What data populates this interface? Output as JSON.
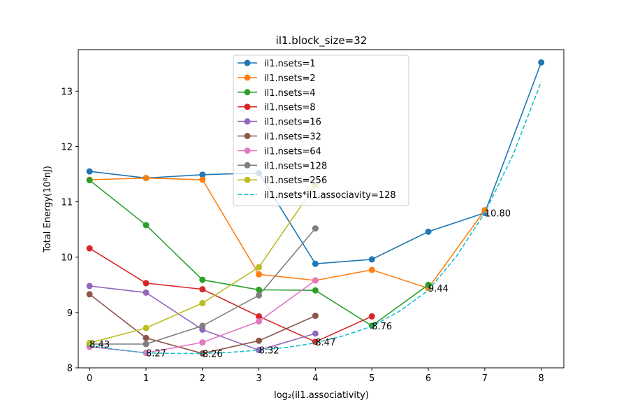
{
  "chart_data": {
    "type": "line",
    "title": "il1.block_size=32",
    "xlabel": "log₂(il1.associativity)",
    "ylabel": "Total Energy(10⁸nJ)",
    "xlim": [
      -0.2,
      8.4
    ],
    "ylim": [
      8.0,
      13.75
    ],
    "xticks": [
      "0",
      "1",
      "2",
      "3",
      "4",
      "5",
      "6",
      "7",
      "8"
    ],
    "yticks": [
      "8",
      "9",
      "10",
      "11",
      "12",
      "13"
    ],
    "legend_position": "upper center",
    "grid": false,
    "series": [
      {
        "name": "il1.nsets=1",
        "color": "#1f77b4",
        "x": [
          0,
          1,
          2,
          3,
          4,
          5,
          6,
          7,
          8
        ],
        "y": [
          11.55,
          11.43,
          11.49,
          11.52,
          9.88,
          9.96,
          10.46,
          10.8,
          13.52
        ]
      },
      {
        "name": "il1.nsets=2",
        "color": "#ff7f0e",
        "x": [
          0,
          1,
          2,
          3,
          4,
          5,
          6,
          7
        ],
        "y": [
          11.4,
          11.43,
          11.4,
          9.69,
          9.58,
          9.77,
          9.44,
          10.85
        ]
      },
      {
        "name": "il1.nsets=4",
        "color": "#2ca02c",
        "x": [
          0,
          1,
          2,
          3,
          4,
          5,
          6
        ],
        "y": [
          11.39,
          10.58,
          9.59,
          9.41,
          9.4,
          8.76,
          9.5
        ]
      },
      {
        "name": "il1.nsets=8",
        "color": "#d62728",
        "x": [
          0,
          1,
          2,
          3,
          4,
          5
        ],
        "y": [
          10.16,
          9.53,
          9.42,
          8.93,
          8.47,
          8.93
        ]
      },
      {
        "name": "il1.nsets=16",
        "color": "#9467bd",
        "x": [
          0,
          1,
          2,
          3,
          4
        ],
        "y": [
          9.48,
          9.36,
          8.69,
          8.32,
          8.62
        ]
      },
      {
        "name": "il1.nsets=32",
        "color": "#8c564b",
        "x": [
          0,
          1,
          2,
          3,
          4
        ],
        "y": [
          9.33,
          8.54,
          8.26,
          8.49,
          8.94
        ]
      },
      {
        "name": "il1.nsets=64",
        "color": "#e377c2",
        "x": [
          0,
          1,
          2,
          3,
          4
        ],
        "y": [
          8.38,
          8.27,
          8.46,
          8.84,
          9.58
        ]
      },
      {
        "name": "il1.nsets=128",
        "color": "#7f7f7f",
        "x": [
          0,
          1,
          2,
          3,
          4
        ],
        "y": [
          8.43,
          8.43,
          8.76,
          9.31,
          10.52
        ]
      },
      {
        "name": "il1.nsets=256",
        "color": "#bcbd22",
        "x": [
          0,
          1,
          2,
          3,
          4
        ],
        "y": [
          8.45,
          8.72,
          9.17,
          9.82,
          11.3
        ]
      },
      {
        "name": "il1.nsets*il1.associavity=128",
        "color": "#17becf",
        "dashed": true,
        "x": [
          0,
          0.5,
          1,
          1.5,
          2,
          2.5,
          3,
          3.5,
          4,
          4.5,
          5,
          5.5,
          6,
          6.5,
          7,
          7.5,
          8
        ],
        "y": [
          8.4,
          8.33,
          8.27,
          8.26,
          8.26,
          8.28,
          8.32,
          8.37,
          8.45,
          8.58,
          8.75,
          9.03,
          9.4,
          10.02,
          10.8,
          11.85,
          13.17
        ]
      }
    ],
    "annotations": [
      {
        "text": "8.43",
        "x": 0,
        "y": 8.43
      },
      {
        "text": "8.27",
        "x": 1,
        "y": 8.27
      },
      {
        "text": "8.26",
        "x": 2,
        "y": 8.26
      },
      {
        "text": "8.32",
        "x": 3,
        "y": 8.32
      },
      {
        "text": "8.47",
        "x": 4,
        "y": 8.47
      },
      {
        "text": "8.76",
        "x": 5,
        "y": 8.76
      },
      {
        "text": "9.44",
        "x": 6,
        "y": 9.44
      },
      {
        "text": "10.80",
        "x": 7,
        "y": 10.8
      }
    ]
  }
}
